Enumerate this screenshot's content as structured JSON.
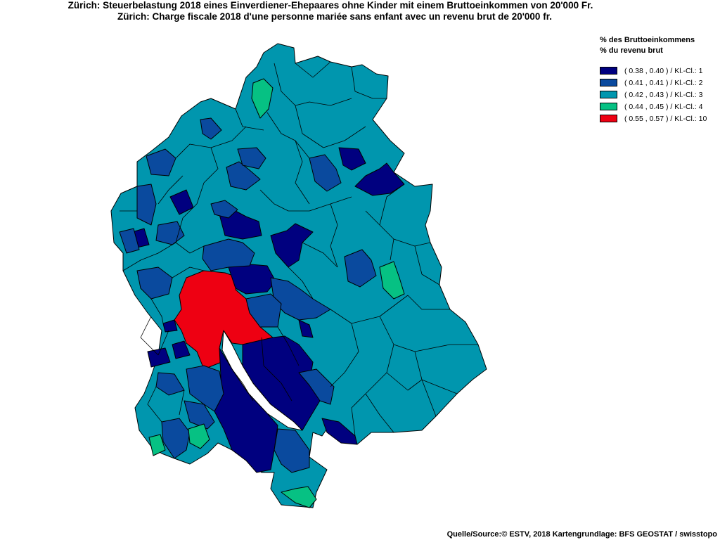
{
  "title_de": "Zürich: Steuerbelastung 2018 eines Einverdiener-Ehepaares ohne Kinder mit einem Bruttoeinkommen von 20'000 Fr.",
  "title_fr": "Zürich: Charge fiscale 2018 d'une personne mariée sans enfant avec un revenu brut de 20'000 fr.",
  "legend": {
    "header_de": "% des Bruttoeinkommens",
    "header_fr": "% du revenu brut",
    "items": [
      {
        "label": "( 0.38 , 0.40 ) / Kl.-Cl.: 1",
        "color": "#00007f"
      },
      {
        "label": "( 0.41 , 0.41 ) / Kl.-Cl.: 2",
        "color": "#0a4a9e"
      },
      {
        "label": "( 0.42 , 0.43 ) / Kl.-Cl.: 3",
        "color": "#0096ae"
      },
      {
        "label": "( 0.44 , 0.45 ) / Kl.-Cl.: 4",
        "color": "#06c183"
      },
      {
        "label": "( 0.55 , 0.57 ) / Kl.-Cl.: 10",
        "color": "#ee0012"
      }
    ]
  },
  "source": "Quelle/Source:© ESTV, 2018 Kartengrundlage: BFS GEOSTAT / swisstopo"
}
